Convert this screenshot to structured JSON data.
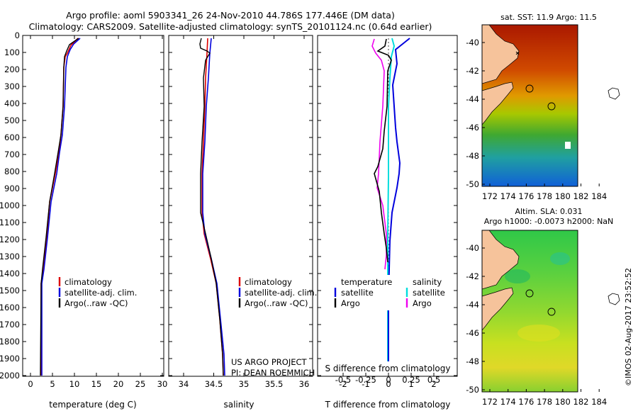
{
  "header": {
    "line1": "Argo profile: aoml 5903341_26 24-Nov-2010 44.786S 177.446E (DM data)",
    "line2": "Climatology: CARS2009. Satellite-adjusted climatology: synTS_20101124.nc (0.64d earlier)"
  },
  "colors": {
    "climatology": "#dd0000",
    "satellite": "#0000dd",
    "argo": "#000000",
    "sat_s": "#00dddd",
    "argo_s": "#ee00ee",
    "land": "#f6c39b"
  },
  "depth_axis": {
    "ticks": [
      "0",
      "100",
      "200",
      "300",
      "400",
      "500",
      "600",
      "700",
      "800",
      "900",
      "1000",
      "1100",
      "1200",
      "1300",
      "1400",
      "1500",
      "1600",
      "1700",
      "1800",
      "1900",
      "2000"
    ]
  },
  "panels": {
    "temperature": {
      "xlabel": "temperature (deg C)",
      "xticks": [
        "0",
        "5",
        "10",
        "15",
        "20",
        "25",
        "30"
      ],
      "legend": [
        "climatology",
        "satellite-adj. clim.",
        "Argo(..raw -QC)"
      ]
    },
    "salinity": {
      "xlabel": "salinity",
      "xticks": [
        "34",
        "34.5",
        "35",
        "35.5",
        "36"
      ],
      "legend": [
        "climatology",
        "satellite-adj. clim.",
        "Argo(..raw -QC)"
      ],
      "project": "US ARGO PROJECT",
      "pi": "PI: DEAN ROEMMICH"
    },
    "difference": {
      "xlabel_bottom": "T difference from climatology",
      "xlabel_top": "S difference from climatology",
      "xticks_T": [
        "-2",
        "-1",
        "0",
        "1",
        "2"
      ],
      "xticks_S": [
        "-0.5",
        "-0.25",
        "0",
        "0.25",
        "0.5"
      ],
      "legend_temp_title": "temperature",
      "legend_sal_title": "salinity",
      "legend_temp": [
        "satellite",
        "Argo"
      ],
      "legend_sal": [
        "satellite",
        "Argo"
      ]
    }
  },
  "maps": {
    "top_title": "sat. SST: 11.9  Argo: 11.5",
    "bottom_title1": "Altim. SLA: 0.031",
    "bottom_title2": "Argo h1000: -0.0073  h2000: NaN",
    "lat_ticks": [
      "-40",
      "-42",
      "-44",
      "-46",
      "-48",
      "-50"
    ],
    "lon_ticks": [
      "172",
      "174",
      "176",
      "178",
      "180",
      "182",
      "184"
    ]
  },
  "footer": {
    "stamp": "©IMOS 02-Aug-2017 23:52:52"
  }
}
